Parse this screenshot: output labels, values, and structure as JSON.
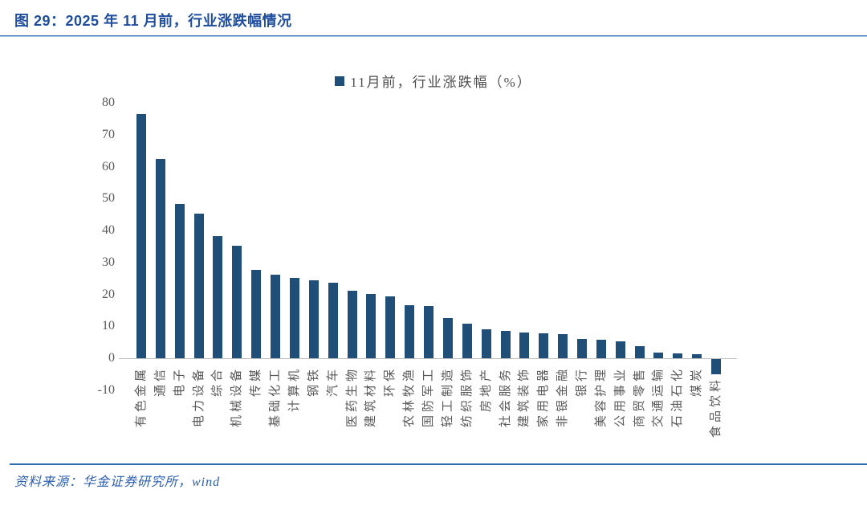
{
  "figure": {
    "title": "图 29：2025 年 11 月前，行业涨跌幅情况",
    "source": "资料来源：华金证券研究所，wind"
  },
  "colors": {
    "title": "#1F4E9F",
    "divider": "#2E6DB4",
    "divider_light": "#A9C7E8",
    "bar": "#1F4E79",
    "axis_line": "#BFBFBF",
    "tick_text": "#595959",
    "source_text": "#2B5EB0"
  },
  "chart_data": {
    "type": "bar",
    "title": "11月前，行业涨跌幅（%）",
    "series_name": "11月前，行业涨跌幅（%）",
    "legend_position": "top-center",
    "legend_swatch": "square-icon",
    "grid": false,
    "xlabel": "",
    "ylabel": "",
    "ylim": [
      -10,
      80
    ],
    "yticks": [
      80,
      70,
      60,
      50,
      40,
      30,
      20,
      10,
      0,
      -10
    ],
    "categories": [
      "有色金属",
      "通信",
      "电子",
      "电力设备",
      "综合",
      "机械设备",
      "传媒",
      "基础化工",
      "计算机",
      "钢铁",
      "汽车",
      "医药生物",
      "建筑材料",
      "环保",
      "农林牧渔",
      "国防军工",
      "轻工制造",
      "纺织服饰",
      "房地产",
      "社会服务",
      "建筑装饰",
      "家用电器",
      "非银金融",
      "银行",
      "美容护理",
      "公用事业",
      "商贸零售",
      "交通运输",
      "石油石化",
      "煤炭",
      "食品饮料"
    ],
    "values": [
      76.4,
      62.4,
      48.3,
      45.3,
      38.2,
      35.2,
      27.7,
      26.2,
      25.2,
      24.5,
      23.7,
      21.1,
      20.1,
      19.3,
      16.5,
      16.4,
      12.7,
      10.7,
      9.1,
      8.6,
      8.0,
      7.8,
      7.5,
      6.0,
      5.9,
      5.2,
      3.8,
      1.7,
      1.5,
      1.3,
      -4.7
    ]
  }
}
